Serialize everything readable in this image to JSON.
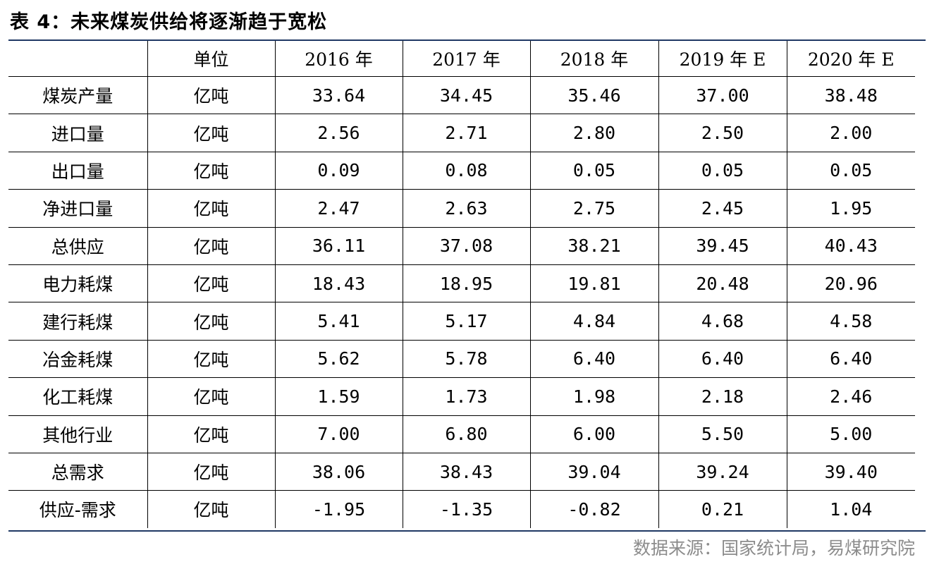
{
  "title": "表 4：未来煤炭供给将逐渐趋于宽松",
  "header": [
    "",
    "单位",
    "2016 年",
    "2017 年",
    "2018 年",
    "2019 年 E",
    "2020 年 E"
  ],
  "rows": [
    {
      "label": "煤炭产量",
      "unit": "亿吨",
      "values": [
        "33.64",
        "34.45",
        "35.46",
        "37.00",
        "38.48"
      ]
    },
    {
      "label": "进口量",
      "unit": "亿吨",
      "values": [
        "2.56",
        "2.71",
        "2.80",
        "2.50",
        "2.00"
      ]
    },
    {
      "label": "出口量",
      "unit": "亿吨",
      "values": [
        "0.09",
        "0.08",
        "0.05",
        "0.05",
        "0.05"
      ]
    },
    {
      "label": "净进口量",
      "unit": "亿吨",
      "values": [
        "2.47",
        "2.63",
        "2.75",
        "2.45",
        "1.95"
      ]
    },
    {
      "label": "总供应",
      "unit": "亿吨",
      "values": [
        "36.11",
        "37.08",
        "38.21",
        "39.45",
        "40.43"
      ]
    },
    {
      "label": "电力耗煤",
      "unit": "亿吨",
      "values": [
        "18.43",
        "18.95",
        "19.81",
        "20.48",
        "20.96"
      ]
    },
    {
      "label": "建行耗煤",
      "unit": "亿吨",
      "values": [
        "5.41",
        "5.17",
        "4.84",
        "4.68",
        "4.58"
      ]
    },
    {
      "label": "冶金耗煤",
      "unit": "亿吨",
      "values": [
        "5.62",
        "5.78",
        "6.40",
        "6.40",
        "6.40"
      ]
    },
    {
      "label": "化工耗煤",
      "unit": "亿吨",
      "values": [
        "1.59",
        "1.73",
        "1.98",
        "2.18",
        "2.46"
      ]
    },
    {
      "label": "其他行业",
      "unit": "亿吨",
      "values": [
        "7.00",
        "6.80",
        "6.00",
        "5.50",
        "5.00"
      ]
    },
    {
      "label": "总需求",
      "unit": "亿吨",
      "values": [
        "38.06",
        "38.43",
        "39.04",
        "39.24",
        "39.40"
      ]
    },
    {
      "label": "供应-需求",
      "unit": "亿吨",
      "values": [
        "-1.95",
        "-1.35",
        "-0.82",
        "0.21",
        "1.04"
      ]
    }
  ],
  "source": "数据来源：国家统计局，易煤研究院",
  "colors": {
    "rule": "#1f3864",
    "grid": "#000000",
    "source_text": "#8c8c8c"
  }
}
